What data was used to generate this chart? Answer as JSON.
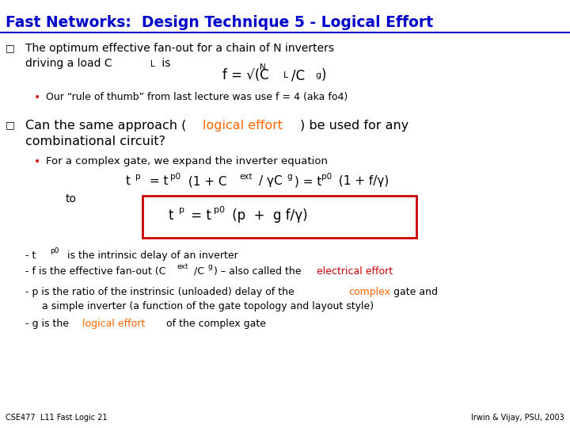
{
  "title": "Fast Networks:  Design Technique 5 - Logical Effort",
  "title_color": "#0000CC",
  "title_underline": true,
  "bg_color": "#FFFFFF",
  "bullet_color": "#CC0000",
  "text_color": "#000000",
  "highlight_color": "#FF6600",
  "red_color": "#CC0000",
  "footer_left": "CSE477  L11 Fast Logic 21",
  "footer_right": "Irwin & Vijay, PSU, 2003"
}
